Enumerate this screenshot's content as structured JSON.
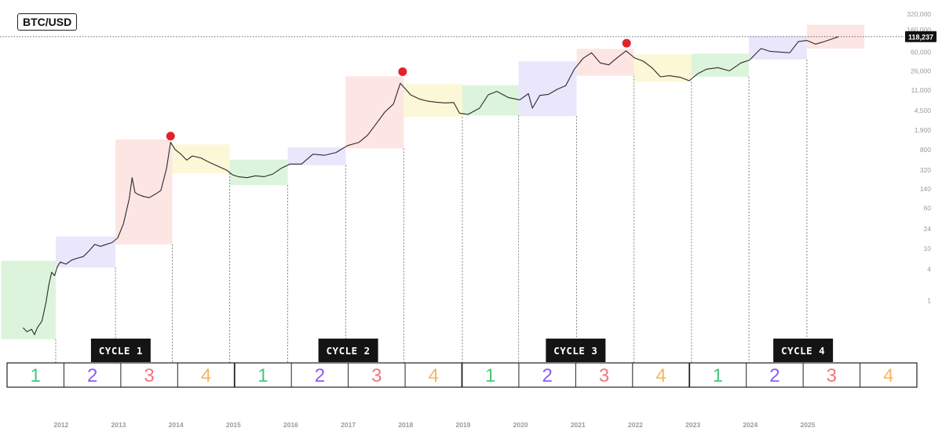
{
  "ticker": "BTC/USD",
  "price_label": "118,237",
  "colors": {
    "phase1": "#48c77d",
    "phase2": "#8b5cf6",
    "phase3": "#f2767a",
    "phase4": "#f3b760",
    "zone1": "#d6f2d5",
    "zone2": "#e6e3fb",
    "zone3": "#fbe0de",
    "zone4": "#fbf6cf",
    "peak": "#e2222a",
    "line": "#2b2b2b",
    "badge_bg": "#141414"
  },
  "chart_data": {
    "type": "line",
    "title": "BTC/USD",
    "scale": "log",
    "ylim": [
      0.07,
      600000
    ],
    "xlim": [
      2010.95,
      2026.6
    ],
    "y_ticks": [
      {
        "value": 320000,
        "label": "320,000"
      },
      {
        "value": 160000,
        "label": "160,000"
      },
      {
        "value": 60000,
        "label": "60,000"
      },
      {
        "value": 26000,
        "label": "26,000"
      },
      {
        "value": 11000,
        "label": "11,000"
      },
      {
        "value": 4500,
        "label": "4,500"
      },
      {
        "value": 1900,
        "label": "1,900"
      },
      {
        "value": 800,
        "label": "800"
      },
      {
        "value": 320,
        "label": "320"
      },
      {
        "value": 140,
        "label": "140"
      },
      {
        "value": 60,
        "label": "60"
      },
      {
        "value": 24,
        "label": "24"
      },
      {
        "value": 10,
        "label": "10"
      },
      {
        "value": 4,
        "label": "4"
      },
      {
        "value": 1,
        "label": "1"
      }
    ],
    "x_ticks": [
      "2012",
      "2013",
      "2014",
      "2015",
      "2016",
      "2017",
      "2018",
      "2019",
      "2020",
      "2021",
      "2022",
      "2023",
      "2024",
      "2025"
    ],
    "current_price": 118237,
    "series": [
      {
        "x": [
          2011.35,
          2011.42,
          2011.5,
          2011.55,
          2011.6,
          2011.68,
          2011.75,
          2011.8,
          2011.85,
          2011.9,
          2011.95,
          2012.0,
          2012.1,
          2012.2,
          2012.3,
          2012.4,
          2012.5,
          2012.6,
          2012.7,
          2012.8,
          2012.9,
          2013.0,
          2013.1,
          2013.2,
          2013.25,
          2013.3,
          2013.35,
          2013.45,
          2013.55,
          2013.65,
          2013.75,
          2013.85,
          2013.92,
          2014.0,
          2014.1,
          2014.2,
          2014.3,
          2014.45,
          2014.6,
          2014.75,
          2014.9,
          2015.0,
          2015.1,
          2015.25,
          2015.4,
          2015.55,
          2015.7,
          2015.85,
          2016.0,
          2016.2,
          2016.4,
          2016.6,
          2016.8,
          2017.0,
          2017.2,
          2017.35,
          2017.5,
          2017.65,
          2017.8,
          2017.92,
          2018.0,
          2018.1,
          2018.25,
          2018.4,
          2018.55,
          2018.7,
          2018.85,
          2018.95,
          2019.1,
          2019.3,
          2019.45,
          2019.6,
          2019.8,
          2020.0,
          2020.15,
          2020.22,
          2020.35,
          2020.5,
          2020.65,
          2020.8,
          2020.95,
          2021.1,
          2021.25,
          2021.4,
          2021.55,
          2021.7,
          2021.85,
          2022.0,
          2022.15,
          2022.3,
          2022.45,
          2022.6,
          2022.8,
          2022.95,
          2023.1,
          2023.25,
          2023.45,
          2023.65,
          2023.85,
          2024.0,
          2024.2,
          2024.35,
          2024.5,
          2024.7,
          2024.85,
          2025.0,
          2025.15,
          2025.3,
          2025.45,
          2025.55
        ],
        "values": [
          0.3,
          0.25,
          0.28,
          0.22,
          0.3,
          0.4,
          0.9,
          2.0,
          3.5,
          3.0,
          4.5,
          5.5,
          5.0,
          6.0,
          6.5,
          7.0,
          9.0,
          12.0,
          11.0,
          12.0,
          13.0,
          16.0,
          30.0,
          90.0,
          230.0,
          120.0,
          110.0,
          100.0,
          95.0,
          110.0,
          130.0,
          350.0,
          1100.0,
          800.0,
          650.0,
          500.0,
          600.0,
          550.0,
          450.0,
          380.0,
          320.0,
          260.0,
          240.0,
          230.0,
          250.0,
          240.0,
          270.0,
          350.0,
          420.0,
          420.0,
          650.0,
          620.0,
          700.0,
          950.0,
          1100.0,
          1500.0,
          2500.0,
          4200.0,
          6000.0,
          15000.0,
          12000.0,
          9000.0,
          7500.0,
          6800.0,
          6500.0,
          6300.0,
          6400.0,
          4000.0,
          3800.0,
          5000.0,
          9000.0,
          10500.0,
          8000.0,
          7200.0,
          9500.0,
          5000.0,
          8800.0,
          9200.0,
          11500.0,
          13500.0,
          28000.0,
          45000.0,
          58000.0,
          37000.0,
          34000.0,
          47000.0,
          63000.0,
          46000.0,
          40000.0,
          30000.0,
          20000.0,
          21000.0,
          19500.0,
          16800.0,
          23000.0,
          28000.0,
          30000.0,
          26000.0,
          37000.0,
          42000.0,
          70000.0,
          62000.0,
          60000.0,
          58000.0,
          95000.0,
          100000.0,
          85000.0,
          95000.0,
          108000.0,
          118237.0
        ]
      }
    ],
    "peaks": [
      {
        "x": 2013.92,
        "y": 1100
      },
      {
        "x": 2017.96,
        "y": 19000
      },
      {
        "x": 2021.86,
        "y": 67000
      }
    ],
    "phase_zones": [
      {
        "phase": 1,
        "x0": 2010.97,
        "x1": 2011.92,
        "y0": 0.18,
        "y1": 5.8
      },
      {
        "phase": 2,
        "x0": 2011.92,
        "x1": 2012.96,
        "y0": 4.3,
        "y1": 17
      },
      {
        "phase": 3,
        "x0": 2012.96,
        "x1": 2013.95,
        "y0": 12,
        "y1": 1250
      },
      {
        "phase": 4,
        "x0": 2013.95,
        "x1": 2014.95,
        "y0": 280,
        "y1": 1000
      },
      {
        "phase": 1,
        "x0": 2014.95,
        "x1": 2015.96,
        "y0": 165,
        "y1": 510
      },
      {
        "phase": 2,
        "x0": 2015.96,
        "x1": 2016.97,
        "y0": 400,
        "y1": 880
      },
      {
        "phase": 3,
        "x0": 2016.97,
        "x1": 2017.98,
        "y0": 840,
        "y1": 20500
      },
      {
        "phase": 4,
        "x0": 2017.98,
        "x1": 2019.0,
        "y0": 3400,
        "y1": 14500
      },
      {
        "phase": 1,
        "x0": 2019.0,
        "x1": 2019.98,
        "y0": 3600,
        "y1": 13800
      },
      {
        "phase": 2,
        "x0": 2019.98,
        "x1": 2020.99,
        "y0": 3500,
        "y1": 40000
      },
      {
        "phase": 3,
        "x0": 2020.99,
        "x1": 2021.99,
        "y0": 21000,
        "y1": 69000
      },
      {
        "phase": 4,
        "x0": 2021.99,
        "x1": 2022.99,
        "y0": 16000,
        "y1": 54000
      },
      {
        "phase": 1,
        "x0": 2022.99,
        "x1": 2023.99,
        "y0": 20000,
        "y1": 56000
      },
      {
        "phase": 2,
        "x0": 2023.99,
        "x1": 2025.0,
        "y0": 43000,
        "y1": 121000
      },
      {
        "phase": 3,
        "x0": 2025.0,
        "x1": 2026.0,
        "y0": 70000,
        "y1": 200000
      }
    ],
    "cycle_dividers": [
      2011.92,
      2012.96,
      2013.95,
      2014.95,
      2015.96,
      2016.97,
      2017.98,
      2019.0,
      2019.98,
      2020.99,
      2021.99,
      2022.99,
      2023.99,
      2025.0
    ]
  },
  "cycles": [
    "CYCLE 1",
    "CYCLE 2",
    "CYCLE 3",
    "CYCLE 4"
  ],
  "phase_labels": [
    "1",
    "2",
    "3",
    "4",
    "1",
    "2",
    "3",
    "4",
    "1",
    "2",
    "3",
    "4",
    "1",
    "2",
    "3",
    "4"
  ]
}
